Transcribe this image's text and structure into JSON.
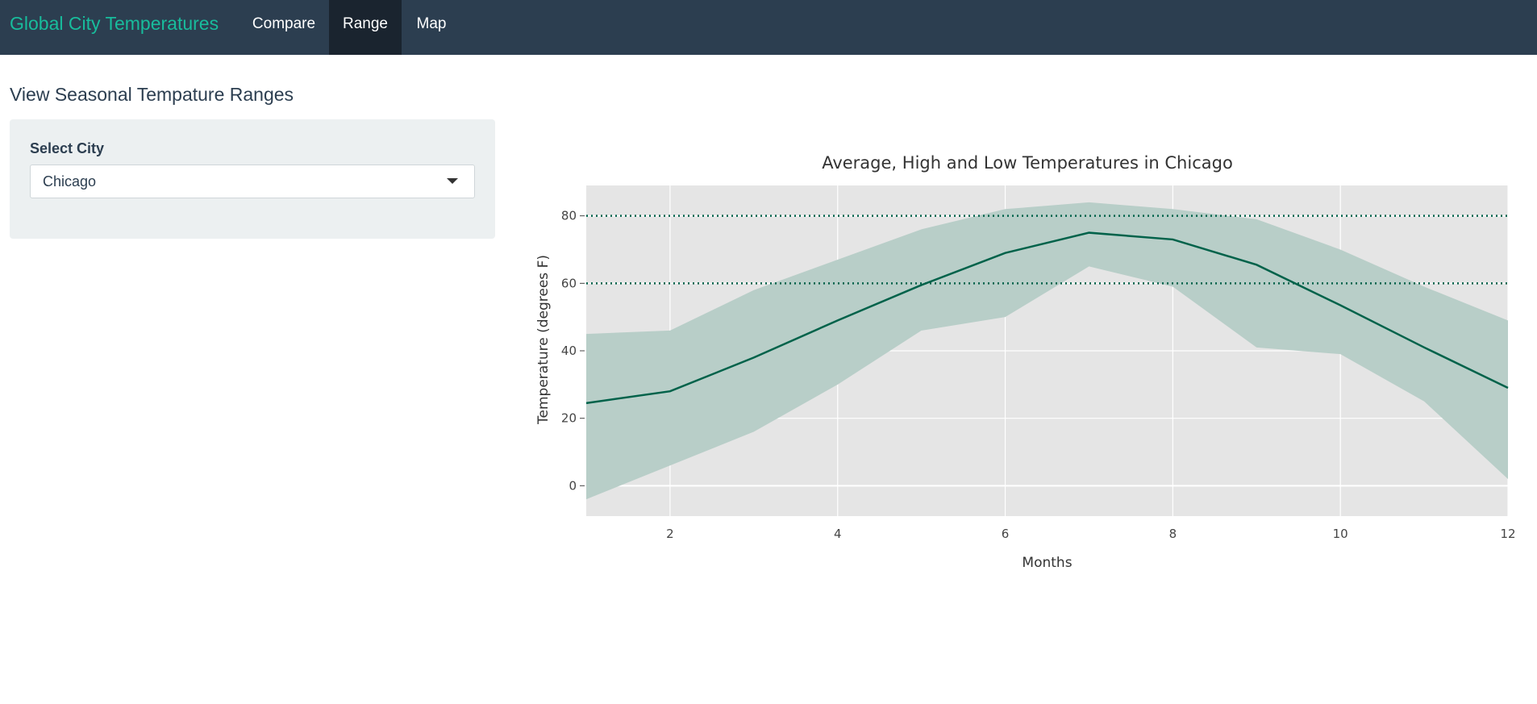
{
  "navbar": {
    "brand": "Global City Temperatures",
    "tabs": [
      {
        "label": "Compare",
        "active": false
      },
      {
        "label": "Range",
        "active": true
      },
      {
        "label": "Map",
        "active": false
      }
    ]
  },
  "page": {
    "heading": "View Seasonal Tempature Ranges"
  },
  "sidebar": {
    "city_label": "Select City",
    "city_value": "Chicago"
  },
  "colors": {
    "navbar_bg": "#2c3e50",
    "brand": "#18bc9c",
    "active_tab_bg": "#1a242f",
    "plot_bg": "#e5e5e5",
    "band_fill": "#b8cec8",
    "line": "#00624a"
  },
  "chart_data": {
    "type": "line",
    "title": "Average, High and Low Temperatures in Chicago",
    "xlabel": "Months",
    "ylabel": "Temperature (degrees F)",
    "xlim": [
      1,
      12
    ],
    "ylim": [
      -9,
      89
    ],
    "xticks": [
      2,
      4,
      6,
      8,
      10,
      12
    ],
    "yticks": [
      0,
      20,
      40,
      60,
      80
    ],
    "grid": true,
    "legend": "none",
    "x": [
      1,
      2,
      3,
      4,
      5,
      6,
      7,
      8,
      9,
      10,
      11,
      12
    ],
    "series": [
      {
        "role": "high",
        "values": [
          45,
          46,
          58,
          67,
          76,
          82,
          84,
          82,
          79,
          70,
          59,
          49
        ]
      },
      {
        "role": "low",
        "values": [
          -4,
          6,
          16,
          30,
          46,
          50,
          65,
          59,
          41,
          39,
          25,
          2
        ]
      },
      {
        "role": "average",
        "values": [
          24.5,
          28,
          38,
          49,
          59.5,
          69,
          75,
          73,
          65.5,
          53.5,
          41,
          29
        ]
      }
    ],
    "reference_lines": [
      {
        "y": 80,
        "style": "dotted"
      },
      {
        "y": 60,
        "style": "dotted"
      }
    ]
  }
}
